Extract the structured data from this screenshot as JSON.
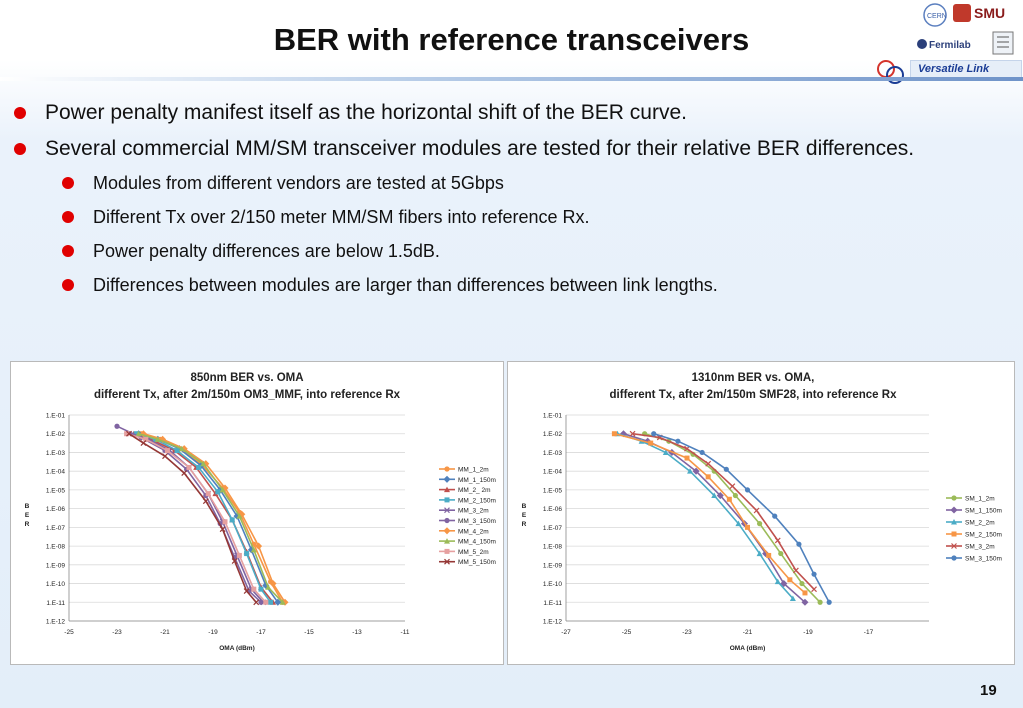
{
  "title": "BER with reference transceivers",
  "logos": {
    "smu": "SMU",
    "fermilab": "Fermilab",
    "cern": "CERN",
    "versatile_link": "Versatile Link"
  },
  "bullets": [
    "Power penalty manifest itself as the horizontal shift of the BER curve.",
    "Several commercial MM/SM transceiver modules are tested for their relative BER differences."
  ],
  "sub_bullets": [
    "Modules from different vendors are tested at 5Gbps",
    "Different Tx over 2/150 meter MM/SM fibers into reference Rx.",
    "Power penalty differences are below 1.5dB.",
    "Differences between modules are larger than differences between link lengths."
  ],
  "slide_number": "19",
  "chart_data": [
    {
      "type": "line",
      "title": "850nm BER vs. OMA",
      "subtitle": "different Tx, after 2m/150m OM3_MMF, into reference Rx",
      "xlabel": "OMA (dBm)",
      "ylabel": "B E R",
      "xlim": [
        -25,
        -11
      ],
      "x_ticks": [
        "-25",
        "-23",
        "-21",
        "-19",
        "-17",
        "-15",
        "-13",
        "-11"
      ],
      "y_ticks": [
        "1.E-01",
        "1.E-02",
        "1.E-03",
        "1.E-04",
        "1.E-05",
        "1.E-06",
        "1.E-07",
        "1.E-08",
        "1.E-09",
        "1.E-10",
        "1.E-11",
        "1.E-12"
      ],
      "ylim_log10": [
        -12,
        -1
      ],
      "series": [
        {
          "name": "MM_1_2m",
          "color": "#f79646",
          "x": [
            -22.0,
            -21.2,
            -20.4,
            -19.5,
            -18.6,
            -17.9,
            -17.3,
            -16.6,
            -16.1
          ],
          "y": [
            -2,
            -2.3,
            -2.8,
            -3.6,
            -4.9,
            -6.2,
            -7.9,
            -9.9,
            -11
          ]
        },
        {
          "name": "MM_1_150m",
          "color": "#4f81bd",
          "x": [
            -22.1,
            -21.3,
            -20.4,
            -19.5,
            -18.7,
            -18.0,
            -17.4,
            -16.8,
            -16.3
          ],
          "y": [
            -2,
            -2.3,
            -2.8,
            -3.7,
            -5.0,
            -6.4,
            -8.2,
            -10.1,
            -11
          ]
        },
        {
          "name": "MM_2_ 2m",
          "color": "#c0504d",
          "x": [
            -22.3,
            -21.6,
            -20.6,
            -19.7,
            -18.9,
            -18.2,
            -17.6,
            -17.0,
            -16.5
          ],
          "y": [
            -2,
            -2.3,
            -2.9,
            -3.8,
            -5.2,
            -6.6,
            -8.3,
            -10.2,
            -11
          ]
        },
        {
          "name": "MM_2_150m",
          "color": "#4bacc6",
          "x": [
            -22.2,
            -21.4,
            -20.5,
            -19.6,
            -18.8,
            -18.2,
            -17.6,
            -17.0,
            -16.6
          ],
          "y": [
            -2,
            -2.3,
            -2.9,
            -3.8,
            -5.1,
            -6.6,
            -8.4,
            -10.3,
            -11
          ]
        },
        {
          "name": "MM_3_2m",
          "color": "#8064a2",
          "x": [
            -22.5,
            -21.7,
            -20.8,
            -20.0,
            -19.2,
            -18.6,
            -18.0,
            -17.4,
            -16.9
          ],
          "y": [
            -2,
            -2.3,
            -2.9,
            -3.8,
            -5.2,
            -6.7,
            -8.5,
            -10.3,
            -11
          ]
        },
        {
          "name": "MM_3_150m",
          "color": "#8064a2",
          "x": [
            -23.0,
            -22.0,
            -21.0,
            -20.1,
            -19.3,
            -18.7,
            -18.1,
            -17.5,
            -17.0
          ],
          "y": [
            -1.6,
            -2.2,
            -2.9,
            -3.9,
            -5.3,
            -6.8,
            -8.6,
            -10.4,
            -11
          ]
        },
        {
          "name": "MM_4_2m",
          "color": "#f79646",
          "x": [
            -21.9,
            -21.1,
            -20.2,
            -19.3,
            -18.5,
            -17.8,
            -17.1,
            -16.5,
            -16.0
          ],
          "y": [
            -2,
            -2.3,
            -2.8,
            -3.6,
            -4.9,
            -6.3,
            -8.0,
            -10.0,
            -11
          ]
        },
        {
          "name": "MM_4_150m",
          "color": "#9bbb59",
          "x": [
            -22.1,
            -21.3,
            -20.3,
            -19.4,
            -18.6,
            -17.9,
            -17.3,
            -16.7,
            -16.1
          ],
          "y": [
            -2,
            -2.3,
            -2.8,
            -3.6,
            -5.0,
            -6.4,
            -8.2,
            -10.2,
            -11
          ]
        },
        {
          "name": "MM_5_2m",
          "color": "#e6a0a0",
          "x": [
            -22.6,
            -21.8,
            -20.9,
            -20.0,
            -19.2,
            -18.5,
            -17.9,
            -17.3,
            -16.8
          ],
          "y": [
            -2,
            -2.3,
            -2.9,
            -3.8,
            -5.2,
            -6.7,
            -8.5,
            -10.3,
            -11
          ]
        },
        {
          "name": "MM_5_150m",
          "color": "#953735",
          "x": [
            -22.5,
            -21.9,
            -21.0,
            -20.2,
            -19.3,
            -18.6,
            -18.1,
            -17.6,
            -17.2
          ],
          "y": [
            -2,
            -2.5,
            -3.2,
            -4.1,
            -5.6,
            -7.1,
            -8.8,
            -10.4,
            -11
          ]
        }
      ]
    },
    {
      "type": "line",
      "title": "1310nm BER vs. OMA,",
      "subtitle": "different Tx, after 2m/150m SMF28, into reference Rx",
      "xlabel": "OMA (dBm)",
      "ylabel": "B E R",
      "xlim": [
        -27,
        -15
      ],
      "x_ticks": [
        "-27",
        "-25",
        "-23",
        "-21",
        "-19",
        "-17"
      ],
      "y_ticks": [
        "1.E-01",
        "1.E-02",
        "1.E-03",
        "1.E-04",
        "1.E-05",
        "1.E-06",
        "1.E-07",
        "1.E-08",
        "1.E-09",
        "1.E-10",
        "1.E-11",
        "1.E-12"
      ],
      "ylim_log10": [
        -12,
        -1
      ],
      "series": [
        {
          "name": "SM_1_2m",
          "color": "#9bbb59",
          "x": [
            -24.4,
            -23.6,
            -22.8,
            -22.1,
            -21.4,
            -20.6,
            -19.9,
            -19.2,
            -18.6
          ],
          "y": [
            -2,
            -2.4,
            -3.1,
            -4.0,
            -5.3,
            -6.8,
            -8.4,
            -10.0,
            -11
          ]
        },
        {
          "name": "SM_1_150m",
          "color": "#8064a2",
          "x": [
            -25.1,
            -24.3,
            -23.5,
            -22.7,
            -21.9,
            -21.1,
            -20.4,
            -19.8,
            -19.1
          ],
          "y": [
            -2,
            -2.4,
            -3.0,
            -4.0,
            -5.3,
            -6.8,
            -8.4,
            -10.0,
            -11
          ]
        },
        {
          "name": "SM_2_2m",
          "color": "#4bacc6",
          "x": [
            -25.3,
            -24.5,
            -23.7,
            -22.9,
            -22.1,
            -21.3,
            -20.6,
            -20.0,
            -19.5
          ],
          "y": [
            -2,
            -2.4,
            -3.0,
            -4.0,
            -5.3,
            -6.8,
            -8.4,
            -9.9,
            -10.8
          ]
        },
        {
          "name": "SM_2_150m",
          "color": "#f79646",
          "x": [
            -25.4,
            -24.2,
            -23.0,
            -22.3,
            -21.6,
            -21.0,
            -20.3,
            -19.6,
            -19.1
          ],
          "y": [
            -2,
            -2.5,
            -3.3,
            -4.3,
            -5.5,
            -7.0,
            -8.5,
            -9.8,
            -10.5
          ]
        },
        {
          "name": "SM_3_2m",
          "color": "#c0504d",
          "x": [
            -24.8,
            -23.9,
            -23.0,
            -22.3,
            -21.5,
            -20.7,
            -20.0,
            -19.4,
            -18.8
          ],
          "y": [
            -2,
            -2.2,
            -2.8,
            -3.6,
            -4.8,
            -6.1,
            -7.7,
            -9.3,
            -10.3
          ]
        },
        {
          "name": "SM_3_150m",
          "color": "#4f81bd",
          "x": [
            -24.1,
            -23.3,
            -22.5,
            -21.7,
            -21.0,
            -20.1,
            -19.3,
            -18.8,
            -18.3
          ],
          "y": [
            -2,
            -2.4,
            -3.0,
            -3.9,
            -5.0,
            -6.4,
            -7.9,
            -9.5,
            -11
          ]
        }
      ]
    }
  ]
}
